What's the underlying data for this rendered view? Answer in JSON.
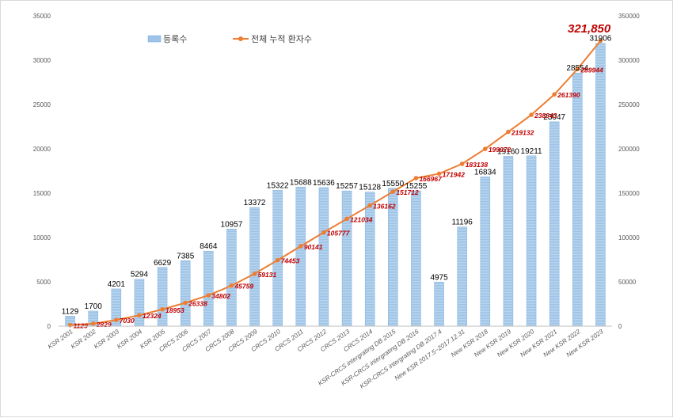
{
  "chart_data": {
    "type": "bar+line",
    "title": "",
    "categories": [
      "KSR 2001",
      "KSR 2002",
      "KSR 2003",
      "KSR 2004",
      "KSR 2005",
      "CRCS 2006",
      "CRCS 2007",
      "CRCS 2008",
      "CRCS 2009",
      "CRCS 2010",
      "CRCS 2011",
      "CRCS 2012",
      "CRCS 2013",
      "CRCS 2014",
      "KSR-CRCS intergrating DB 2015",
      "KSR-CRCS intergrating DB 2016",
      "KSR-CRCS intergrating DB 2017.4",
      "New KSR 2017.5~2017.12.31",
      "New KSR 2018",
      "New KSR 2019",
      "New KSR 2020",
      "New KSR 2021",
      "New KSR 2022",
      "New KSR 2023"
    ],
    "series": [
      {
        "name": "등록수",
        "type": "bar",
        "axis": "left",
        "color": "#9dc3e6",
        "values": [
          1129,
          1700,
          4201,
          5294,
          6629,
          7385,
          8464,
          10957,
          13372,
          15322,
          15688,
          15636,
          15257,
          15128,
          15550,
          15255,
          4975,
          11196,
          16834,
          19160,
          19211,
          23047,
          28554,
          31906
        ]
      },
      {
        "name": "전체 누적 환자수",
        "type": "line",
        "axis": "right",
        "color": "#ed7d31",
        "values": [
          1129,
          2829,
          7030,
          12324,
          18953,
          26338,
          34802,
          45759,
          59131,
          74453,
          90141,
          105777,
          121034,
          136162,
          151712,
          166967,
          171942,
          183138,
          199972,
          219132,
          238343,
          261390,
          289944,
          321850
        ]
      }
    ],
    "y_left": {
      "min": 0,
      "max": 35000,
      "ticks": [
        "0",
        "5000",
        "10000",
        "15000",
        "20000",
        "25000",
        "30000",
        "35000"
      ]
    },
    "y_right": {
      "min": 0,
      "max": 350000,
      "ticks": [
        "0",
        "50000",
        "100000",
        "150000",
        "200000",
        "250000",
        "300000",
        "350000"
      ]
    },
    "annotation": "321,850",
    "legend": {
      "position": "top-left"
    }
  }
}
